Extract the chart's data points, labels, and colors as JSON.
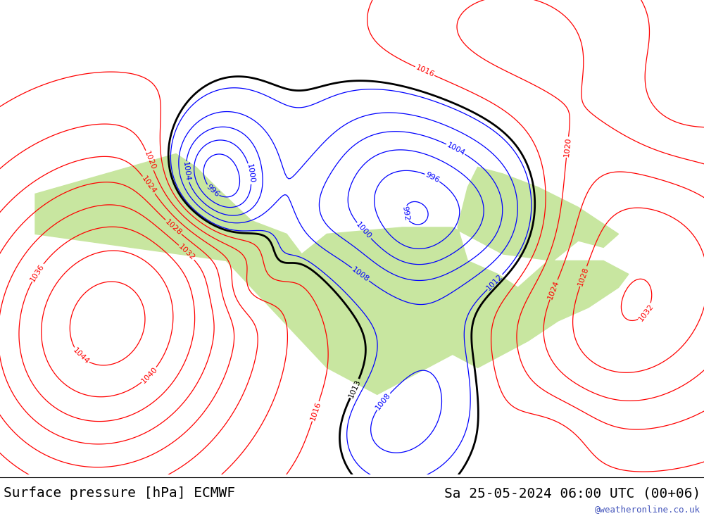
{
  "title_left": "Surface pressure [hPa] ECMWF",
  "title_right": "Sa 25-05-2024 06:00 UTC (00+06)",
  "watermark": "@weatheronline.co.uk",
  "bg_color": "#dcdcdc",
  "land_color_rgb": [
    200,
    230,
    160
  ],
  "ocean_color_rgb": [
    220,
    220,
    220
  ],
  "footer_fontsize": 14,
  "watermark_color": "#4455bb",
  "low_color": "blue",
  "high_color": "red",
  "std_color": "black",
  "contour_interval": 4,
  "pressure_min": 960,
  "pressure_max": 1052,
  "label_fontsize": 8,
  "map_extent": [
    -175,
    -35,
    12,
    83
  ],
  "fig_width": 10.0,
  "fig_height": 7.33,
  "dpi": 100
}
